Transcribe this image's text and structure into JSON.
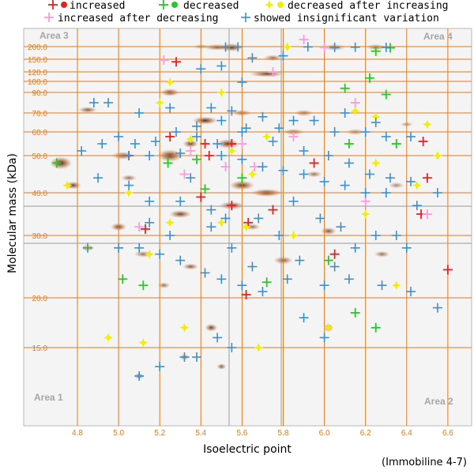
{
  "chart_data": {
    "type": "scatter",
    "title": "",
    "xlabel": "Isoelectric point",
    "ylabel": "Molecular mass (kDa)",
    "note": "(Immobiline 4-7)",
    "x_ticks": [
      "4.8",
      "5.0",
      "5.2",
      "5.4",
      "5.6",
      "5.8",
      "6.0",
      "6.2",
      "6.4",
      "6.6"
    ],
    "y_ticks": [
      "200.0",
      "150.0",
      "120.0",
      "100.0",
      "90.0",
      "70.0",
      "60.0",
      "50.0",
      "40.0",
      "30.0",
      "20.0",
      "15.0"
    ],
    "areas": [
      "Area 1",
      "Area 2",
      "Area 3",
      "Area 4"
    ],
    "colors": {
      "increased": "#e82020",
      "decreased": "#22cc22",
      "decreased_after_increasing": "#f2ee00",
      "increased_after_decreasing": "#ff99dd",
      "insignificant": "#3a8fd0",
      "grid": "#e07a1e",
      "divider": "#9a9a9a"
    },
    "legend": [
      {
        "label": "increased",
        "key": "increased"
      },
      {
        "label": "decreased",
        "key": "decreased"
      },
      {
        "label": "decreased after increasing",
        "key": "decreased_after_increasing"
      },
      {
        "label": "increased after decreasing",
        "key": "increased_after_decreasing"
      },
      {
        "label": "showed insignificant variation",
        "key": "insignificant"
      }
    ],
    "series": [
      {
        "name": "increased",
        "key": "increased",
        "points": [
          [
            5.42,
            55
          ],
          [
            5.55,
            55
          ],
          [
            5.25,
            58
          ],
          [
            6.48,
            56
          ],
          [
            6.5,
            44
          ],
          [
            6.47,
            35
          ],
          [
            6.6,
            24.5
          ],
          [
            5.62,
            20.5
          ],
          [
            5.13,
            31.5
          ],
          [
            5.55,
            37
          ],
          [
            5.75,
            36
          ],
          [
            5.05,
            50
          ],
          [
            5.4,
            39
          ],
          [
            5.95,
            48
          ],
          [
            6.05,
            27
          ],
          [
            5.28,
            117
          ],
          [
            5.63,
            33
          ],
          [
            5.44,
            50
          ]
        ]
      },
      {
        "name": "decreased",
        "key": "decreased",
        "points": [
          [
            4.7,
            48
          ],
          [
            5.24,
            48
          ],
          [
            5.38,
            49
          ],
          [
            6.25,
            141
          ],
          [
            6.22,
            97
          ],
          [
            6.32,
            149
          ],
          [
            5.72,
            22.5
          ],
          [
            5.02,
            23
          ],
          [
            5.12,
            22
          ],
          [
            6.02,
            26
          ],
          [
            6.15,
            18.5
          ],
          [
            6.35,
            55
          ],
          [
            6.3,
            88
          ],
          [
            6.1,
            92
          ],
          [
            6.12,
            55
          ],
          [
            6.25,
            17
          ],
          [
            5.42,
            41
          ],
          [
            5.6,
            44
          ]
        ]
      },
      {
        "name": "decreased after increasing",
        "key": "decreased_after_increasing",
        "points": [
          [
            5.68,
            15
          ],
          [
            6.02,
            17
          ],
          [
            6.25,
            48
          ],
          [
            4.75,
            42
          ],
          [
            4.95,
            16
          ],
          [
            5.12,
            15.5
          ],
          [
            5.32,
            17
          ],
          [
            6.45,
            42
          ],
          [
            6.55,
            50
          ],
          [
            6.5,
            64
          ],
          [
            5.2,
            80
          ],
          [
            5.35,
            57
          ],
          [
            5.72,
            58
          ],
          [
            6.15,
            72
          ],
          [
            6.25,
            68
          ],
          [
            5.25,
            95
          ],
          [
            5.5,
            90
          ],
          [
            5.82,
            180
          ],
          [
            5.55,
            52
          ],
          [
            5.65,
            45
          ],
          [
            4.85,
            28
          ],
          [
            5.05,
            40
          ],
          [
            5.25,
            33
          ],
          [
            5.5,
            33
          ],
          [
            5.62,
            32
          ],
          [
            5.85,
            30
          ],
          [
            6.2,
            35
          ],
          [
            6.35,
            22
          ],
          [
            5.15,
            27
          ]
        ]
      },
      {
        "name": "increased after decreasing",
        "key": "increased_after_decreasing",
        "points": [
          [
            5.1,
            32
          ],
          [
            5.32,
            45
          ],
          [
            5.52,
            47
          ],
          [
            5.66,
            47
          ],
          [
            5.85,
            58
          ],
          [
            6.2,
            38
          ],
          [
            6.5,
            35
          ],
          [
            6.15,
            80
          ],
          [
            6.0,
            155
          ],
          [
            5.9,
            210
          ],
          [
            5.22,
            120
          ],
          [
            5.75,
            100
          ],
          [
            5.6,
            55
          ],
          [
            5.35,
            52
          ]
        ]
      },
      {
        "name": "showed insignificant variation",
        "key": "insignificant",
        "points": [
          [
            5.0,
            28
          ],
          [
            4.85,
            28
          ],
          [
            4.9,
            44
          ],
          [
            5.05,
            42
          ],
          [
            5.15,
            38
          ],
          [
            5.35,
            44
          ],
          [
            5.45,
            32
          ],
          [
            5.55,
            28
          ],
          [
            5.65,
            25
          ],
          [
            5.78,
            30
          ],
          [
            5.88,
            26
          ],
          [
            6.05,
            25
          ],
          [
            6.15,
            28
          ],
          [
            6.35,
            30
          ],
          [
            6.45,
            37
          ],
          [
            6.55,
            40
          ],
          [
            5.9,
            18
          ],
          [
            6.0,
            16
          ],
          [
            5.48,
            16
          ],
          [
            5.55,
            15
          ],
          [
            5.32,
            14
          ],
          [
            5.2,
            13
          ],
          [
            5.1,
            12
          ],
          [
            5.38,
            14
          ],
          [
            4.88,
            80
          ],
          [
            4.95,
            80
          ],
          [
            5.1,
            70
          ],
          [
            5.25,
            75
          ],
          [
            5.45,
            75
          ],
          [
            5.55,
            72
          ],
          [
            5.7,
            68
          ],
          [
            5.85,
            66
          ],
          [
            5.95,
            66
          ],
          [
            6.05,
            60
          ],
          [
            6.2,
            60
          ],
          [
            6.3,
            58
          ],
          [
            6.42,
            58
          ],
          [
            5.05,
            50
          ],
          [
            5.15,
            50
          ],
          [
            5.3,
            51
          ],
          [
            5.5,
            50
          ],
          [
            5.6,
            49
          ],
          [
            5.7,
            47
          ],
          [
            5.8,
            46
          ],
          [
            5.9,
            45
          ],
          [
            6.0,
            43
          ],
          [
            6.1,
            42
          ],
          [
            6.2,
            40
          ],
          [
            6.3,
            40
          ],
          [
            5.4,
            105
          ],
          [
            5.5,
            110
          ],
          [
            5.6,
            95
          ],
          [
            5.65,
            125
          ],
          [
            5.58,
            180
          ],
          [
            5.52,
            175
          ],
          [
            5.92,
            180
          ],
          [
            6.05,
            150
          ],
          [
            6.15,
            160
          ],
          [
            6.3,
            150
          ],
          [
            5.8,
            130
          ],
          [
            5.48,
            55
          ],
          [
            5.38,
            58
          ],
          [
            5.6,
            60
          ],
          [
            5.78,
            62
          ],
          [
            6.1,
            70
          ],
          [
            6.25,
            65
          ],
          [
            5.3,
            38
          ],
          [
            5.45,
            36
          ],
          [
            5.52,
            34
          ],
          [
            5.68,
            34
          ],
          [
            5.85,
            38
          ],
          [
            5.98,
            34
          ],
          [
            6.08,
            32
          ],
          [
            6.25,
            30
          ],
          [
            6.4,
            28
          ],
          [
            5.25,
            30
          ],
          [
            5.15,
            33
          ],
          [
            5.1,
            28
          ],
          [
            5.2,
            27
          ],
          [
            5.3,
            26
          ],
          [
            5.42,
            24
          ],
          [
            5.5,
            23
          ],
          [
            5.6,
            22
          ],
          [
            5.7,
            21
          ],
          [
            5.82,
            23
          ],
          [
            6.0,
            22
          ],
          [
            6.12,
            23
          ],
          [
            6.28,
            22
          ],
          [
            6.42,
            21
          ],
          [
            6.55,
            19
          ],
          [
            4.82,
            52
          ],
          [
            4.92,
            55
          ],
          [
            5.0,
            58
          ],
          [
            5.08,
            55
          ],
          [
            5.18,
            56
          ],
          [
            5.28,
            60
          ],
          [
            5.38,
            63
          ],
          [
            5.5,
            66
          ],
          [
            5.62,
            62
          ],
          [
            5.75,
            56
          ],
          [
            5.9,
            52
          ],
          [
            6.02,
            50
          ],
          [
            6.12,
            48
          ],
          [
            6.22,
            45
          ],
          [
            6.32,
            44
          ],
          [
            6.42,
            43
          ]
        ]
      }
    ],
    "spots": [
      [
        4.72,
        48,
        14,
        8,
        0.95
      ],
      [
        4.78,
        42,
        10,
        5,
        0.8
      ],
      [
        4.85,
        73,
        12,
        4,
        0.7
      ],
      [
        5.02,
        50,
        14,
        5,
        0.7
      ],
      [
        5.25,
        50,
        16,
        8,
        0.9
      ],
      [
        5.35,
        55,
        10,
        5,
        0.8
      ],
      [
        5.42,
        66,
        16,
        5,
        0.9
      ],
      [
        5.53,
        55,
        14,
        6,
        0.85
      ],
      [
        5.6,
        42,
        16,
        6,
        0.85
      ],
      [
        5.72,
        40,
        20,
        5,
        0.85
      ],
      [
        5.55,
        150,
        14,
        5,
        0.9
      ],
      [
        5.72,
        99,
        22,
        4,
        0.8
      ],
      [
        5.48,
        160,
        18,
        4,
        0.7
      ],
      [
        6.05,
        150,
        14,
        4,
        0.6
      ],
      [
        6.25,
        160,
        12,
        4,
        0.6
      ],
      [
        5.25,
        90,
        12,
        5,
        0.8
      ],
      [
        5.0,
        32,
        10,
        5,
        0.8
      ],
      [
        5.12,
        27,
        12,
        4,
        0.6
      ],
      [
        5.3,
        35,
        14,
        5,
        0.8
      ],
      [
        5.55,
        37,
        16,
        5,
        0.8
      ],
      [
        5.8,
        26,
        12,
        5,
        0.7
      ],
      [
        6.02,
        31,
        10,
        5,
        0.7
      ],
      [
        6.28,
        27,
        10,
        4,
        0.6
      ],
      [
        5.85,
        60,
        14,
        4,
        0.6
      ],
      [
        6.15,
        60,
        12,
        4,
        0.5
      ],
      [
        5.45,
        17,
        8,
        5,
        0.8
      ],
      [
        5.5,
        13,
        6,
        4,
        0.7
      ],
      [
        5.1,
        12,
        6,
        4,
        0.7
      ],
      [
        5.32,
        14,
        6,
        4,
        0.6
      ],
      [
        6.02,
        17,
        6,
        5,
        0.8
      ],
      [
        4.85,
        28,
        8,
        4,
        0.8
      ],
      [
        5.95,
        45,
        10,
        4,
        0.6
      ],
      [
        5.65,
        32,
        10,
        4,
        0.6
      ],
      [
        5.35,
        25,
        10,
        4,
        0.7
      ],
      [
        5.05,
        44,
        10,
        4,
        0.6
      ],
      [
        6.35,
        42,
        10,
        4,
        0.5
      ],
      [
        5.75,
        125,
        12,
        4,
        0.6
      ],
      [
        5.4,
        200,
        10,
        3,
        0.5
      ],
      [
        6.4,
        64,
        8,
        3,
        0.5
      ],
      [
        5.22,
        22,
        8,
        4,
        0.6
      ],
      [
        5.9,
        70,
        12,
        4,
        0.6
      ],
      [
        5.6,
        70,
        12,
        4,
        0.6
      ]
    ]
  }
}
